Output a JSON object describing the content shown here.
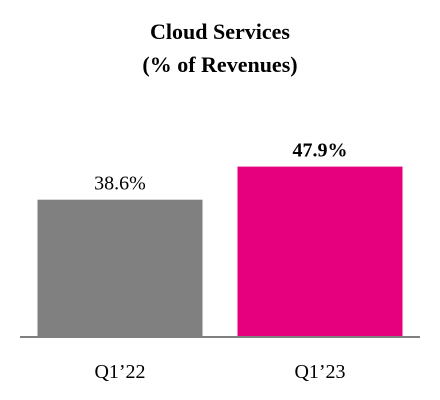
{
  "chart_data": {
    "type": "bar",
    "title_lines": [
      "Cloud Services",
      "(% of Revenues)"
    ],
    "categories": [
      "Q1’22",
      "Q1’23"
    ],
    "values": [
      38.6,
      47.9
    ],
    "value_labels": [
      "38.6%",
      "47.9%"
    ],
    "value_labels_bold": [
      false,
      true
    ],
    "colors": [
      "#808080",
      "#e6007e"
    ],
    "axis_color": "#808080",
    "xlabel": "",
    "ylabel": "",
    "ylim": [
      0,
      61
    ],
    "grid": false,
    "legend": "none"
  }
}
